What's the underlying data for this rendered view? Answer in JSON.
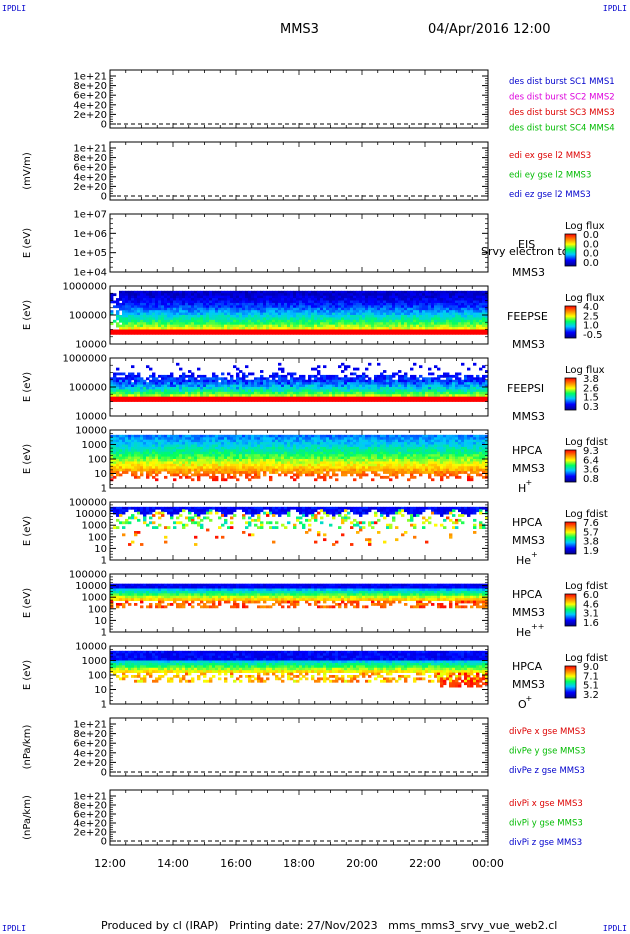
{
  "header": {
    "corner_tl": "IPDLI",
    "corner_tr": "IPDLI",
    "corner_bl": "IPDLI",
    "corner_br": "IPDLI",
    "spacecraft": "MMS3",
    "datetime": "04/Apr/2016 12:00"
  },
  "footer": {
    "text": "Produced by cl (IRAP)   Printing date: 27/Nov/2023   mms_mms3_srvy_vue_web2.cl"
  },
  "time_axis": {
    "ticks": [
      "12:00",
      "14:00",
      "16:00",
      "18:00",
      "20:00",
      "22:00",
      "00:00"
    ]
  },
  "colors": {
    "mms1": "#0000cc",
    "mms2": "#dd00dd",
    "mms3": "#dd0000",
    "mms4": "#00bb00",
    "x_comp": "#dd0000",
    "y_comp": "#00bb00",
    "z_comp": "#0000cc"
  },
  "chart_data": [
    {
      "id": "des",
      "type": "line",
      "ylabel": "",
      "yticks": [
        "1e+21",
        "8e+20",
        "6e+20",
        "4e+20",
        "2e+20",
        "0"
      ],
      "legend": [
        {
          "text": "des dist burst SC1 MMS1",
          "color": "#0000cc"
        },
        {
          "text": "des dist burst SC2 MMS2",
          "color": "#dd00dd"
        },
        {
          "text": "des dist burst SC3 MMS3",
          "color": "#dd0000"
        },
        {
          "text": "des dist burst SC4 MMS4",
          "color": "#00bb00"
        }
      ]
    },
    {
      "id": "edi",
      "type": "line",
      "ylabel": "(mV/m)",
      "yticks": [
        "1e+21",
        "8e+20",
        "6e+20",
        "4e+20",
        "2e+20",
        "0"
      ],
      "legend": [
        {
          "text": "edi ex gse l2 MMS3",
          "color": "#dd0000"
        },
        {
          "text": "edi ey gse l2 MMS3",
          "color": "#00bb00"
        },
        {
          "text": "edi ez gse l2 MMS3",
          "color": "#0000cc"
        }
      ]
    },
    {
      "id": "eis",
      "type": "heatmap",
      "ylabel": "E (eV)",
      "yticks": [
        "1e+07",
        "1e+06",
        "1e+05",
        "1e+04"
      ],
      "right_labels": [
        "EIS",
        "MMS3"
      ],
      "overlap_text": "Srvy electron to",
      "cbar_title": "Log flux",
      "cbar_ticks": [
        "0.0",
        "0.0",
        "0.0",
        "0.0"
      ],
      "filled": 0
    },
    {
      "id": "feepse",
      "type": "heatmap",
      "ylabel": "E (eV)",
      "yticks": [
        "1000000",
        "100000",
        "10000"
      ],
      "right_labels": [
        "FEEPSE",
        "MMS3"
      ],
      "cbar_title": "Log flux",
      "cbar_ticks": [
        "4.0",
        "2.5",
        "1.0",
        "-0.5"
      ],
      "filled": 1
    },
    {
      "id": "feepsi",
      "type": "heatmap",
      "ylabel": "E (eV)",
      "yticks": [
        "1000000",
        "100000",
        "10000"
      ],
      "right_labels": [
        "FEEPSI",
        "MMS3"
      ],
      "cbar_title": "Log flux",
      "cbar_ticks": [
        "3.8",
        "2.6",
        "1.5",
        "0.3"
      ],
      "filled": 1
    },
    {
      "id": "hpca_h",
      "type": "heatmap",
      "ylabel": "E (eV)",
      "yticks": [
        "10000",
        "1000",
        "100",
        "10",
        "1"
      ],
      "right_labels": [
        "HPCA",
        "MMS3"
      ],
      "species": "H",
      "species_sup": "+",
      "cbar_title": "Log fdist",
      "cbar_ticks": [
        "9.3",
        "6.4",
        "3.6",
        "0.8"
      ],
      "filled": 1
    },
    {
      "id": "hpca_he",
      "type": "heatmap",
      "ylabel": "E (eV)",
      "yticks": [
        "100000",
        "10000",
        "1000",
        "100",
        "10",
        "1"
      ],
      "right_labels": [
        "HPCA",
        "MMS3"
      ],
      "species": "He",
      "species_sup": "+",
      "cbar_title": "Log fdist",
      "cbar_ticks": [
        "7.6",
        "5.7",
        "3.8",
        "1.9"
      ],
      "filled": 1
    },
    {
      "id": "hpca_hepp",
      "type": "heatmap",
      "ylabel": "E (eV)",
      "yticks": [
        "100000",
        "10000",
        "1000",
        "100",
        "10",
        "1"
      ],
      "right_labels": [
        "HPCA",
        "MMS3"
      ],
      "species": "He",
      "species_sup": "++",
      "cbar_title": "Log fdist",
      "cbar_ticks": [
        "6.0",
        "4.6",
        "3.1",
        "1.6"
      ],
      "filled": 1
    },
    {
      "id": "hpca_o",
      "type": "heatmap",
      "ylabel": "E (eV)",
      "yticks": [
        "10000",
        "1000",
        "100",
        "10",
        "1"
      ],
      "right_labels": [
        "HPCA",
        "MMS3"
      ],
      "species": "O",
      "species_sup": "+",
      "cbar_title": "Log fdist",
      "cbar_ticks": [
        "9.0",
        "7.1",
        "5.1",
        "3.2"
      ],
      "filled": 1
    },
    {
      "id": "divpe",
      "type": "line",
      "ylabel": "(nPa/km)",
      "yticks": [
        "1e+21",
        "8e+20",
        "6e+20",
        "4e+20",
        "2e+20",
        "0"
      ],
      "legend": [
        {
          "text": "divPe x gse MMS3",
          "color": "#dd0000"
        },
        {
          "text": "divPe y gse MMS3",
          "color": "#00bb00"
        },
        {
          "text": "divPe z gse MMS3",
          "color": "#0000cc"
        }
      ]
    },
    {
      "id": "divpi",
      "type": "line",
      "ylabel": "(nPa/km)",
      "yticks": [
        "1e+21",
        "8e+20",
        "6e+20",
        "4e+20",
        "2e+20",
        "0"
      ],
      "legend": [
        {
          "text": "divPi x gse MMS3",
          "color": "#dd0000"
        },
        {
          "text": "divPi y gse MMS3",
          "color": "#00bb00"
        },
        {
          "text": "divPi z gse MMS3",
          "color": "#0000cc"
        }
      ]
    }
  ]
}
